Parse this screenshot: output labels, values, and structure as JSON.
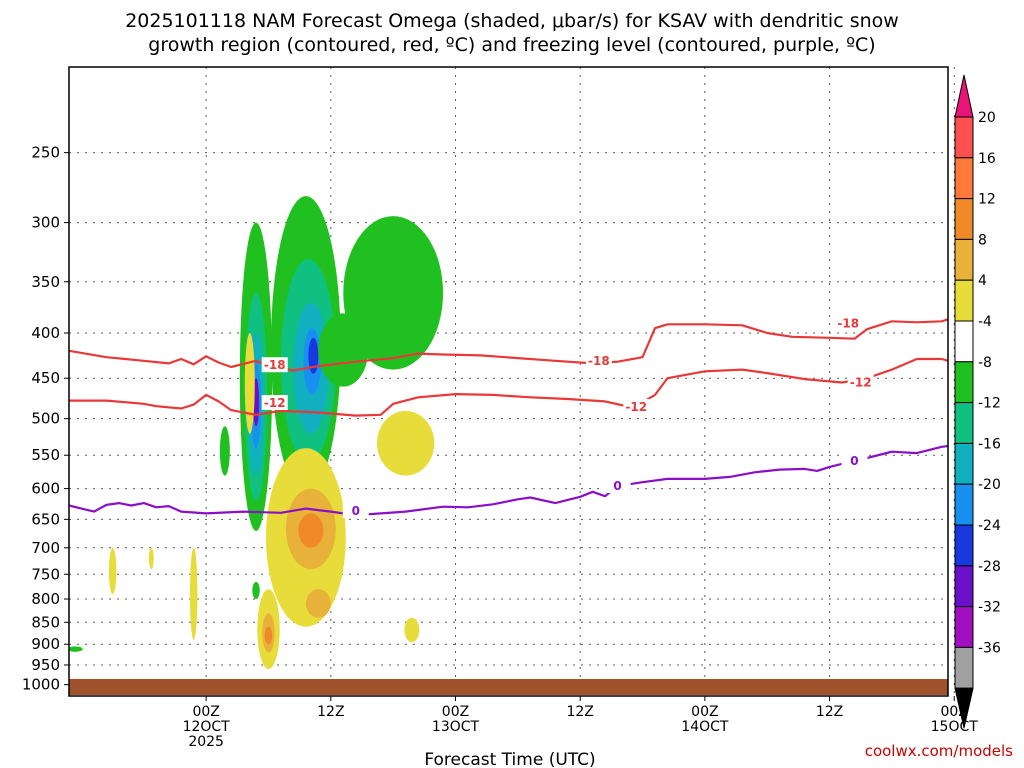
{
  "title": {
    "line1": "2025101118 NAM Forecast Omega (shaded, μbar/s) for KSAV with dendritic snow",
    "line2": "growth region (contoured, red, ºC) and freezing level (contoured, purple, ºC)"
  },
  "credit": "coolwx.com/models",
  "chart_data": {
    "type": "heatmap",
    "title": "2025101118 NAM Forecast Omega (shaded, μbar/s) for KSAV with dendritic snow growth region (contoured, red, ºC) and freezing level (contoured, purple, ºC)",
    "xlabel": "Forecast Time (UTC)",
    "ylabel": "",
    "y_axis": {
      "scale": "pressure (hPa), inverted, log-like",
      "ylim": [
        1030,
        200
      ],
      "ticks": [
        250,
        300,
        350,
        400,
        450,
        500,
        550,
        600,
        650,
        700,
        750,
        800,
        850,
        900,
        950,
        1000
      ]
    },
    "x_axis": {
      "xlim_hours_from_start": [
        -6,
        64.5
      ],
      "start_label": "2025101118",
      "ticks": [
        {
          "hour": 5,
          "line1": "00Z",
          "line2": "12OCT",
          "line3": "2025"
        },
        {
          "hour": 15,
          "line1": "12Z",
          "line2": "",
          "line3": ""
        },
        {
          "hour": 25,
          "line1": "00Z",
          "line2": "13OCT",
          "line3": ""
        },
        {
          "hour": 35,
          "line1": "12Z",
          "line2": "",
          "line3": ""
        },
        {
          "hour": 45,
          "line1": "00Z",
          "line2": "14OCT",
          "line3": ""
        },
        {
          "hour": 55,
          "line1": "12Z",
          "line2": "",
          "line3": ""
        },
        {
          "hour": 65,
          "line1": "00Z",
          "line2": "15OCT",
          "line3": ""
        }
      ]
    },
    "grid": true,
    "colorbar": {
      "labels": [
        "20",
        "16",
        "12",
        "8",
        "4",
        "-4",
        "-8",
        "-12",
        "-16",
        "-20",
        "-24",
        "-28",
        "-32",
        "-36"
      ],
      "colors": [
        "#ff5050",
        "#ff7a3a",
        "#f08a28",
        "#e8b23a",
        "#e8dc3a",
        "#ffffff",
        "#20c020",
        "#10c080",
        "#10b0c0",
        "#1890f0",
        "#1838e0",
        "#6a10c8",
        "#a010c0",
        "#a0a0a0"
      ],
      "top_arrow_color": "#e8147a",
      "bottom_arrow_color": "#000000"
    },
    "contours": [
      {
        "name": "-18",
        "color": "#e83838",
        "points": [
          [
            -6,
            419
          ],
          [
            -3,
            426
          ],
          [
            0,
            430
          ],
          [
            2,
            433
          ],
          [
            3,
            428
          ],
          [
            4,
            434
          ],
          [
            5,
            425
          ],
          [
            6,
            432
          ],
          [
            7,
            437
          ],
          [
            9,
            430
          ],
          [
            10,
            436
          ],
          [
            12,
            441
          ],
          [
            14,
            436
          ],
          [
            17,
            431
          ],
          [
            20,
            427
          ],
          [
            22,
            422
          ],
          [
            24,
            423
          ],
          [
            27,
            424
          ],
          [
            30,
            427
          ],
          [
            33,
            430
          ],
          [
            36,
            433
          ],
          [
            38,
            431
          ],
          [
            40,
            426
          ],
          [
            41,
            395
          ],
          [
            42,
            391
          ],
          [
            45,
            391
          ],
          [
            48,
            392
          ],
          [
            50,
            400
          ],
          [
            52,
            404
          ],
          [
            55,
            405
          ],
          [
            57,
            406
          ],
          [
            58,
            396
          ],
          [
            60,
            388
          ],
          [
            62,
            389
          ],
          [
            64,
            388
          ],
          [
            64.5,
            386
          ]
        ]
      },
      {
        "name": "-12",
        "color": "#e83838",
        "points": [
          [
            -6,
            477
          ],
          [
            -3,
            477
          ],
          [
            0,
            481
          ],
          [
            1,
            484
          ],
          [
            3,
            487
          ],
          [
            4,
            482
          ],
          [
            5,
            470
          ],
          [
            6,
            478
          ],
          [
            7,
            489
          ],
          [
            9,
            495
          ],
          [
            11,
            490
          ],
          [
            14,
            492
          ],
          [
            17,
            496
          ],
          [
            19,
            495
          ],
          [
            20,
            481
          ],
          [
            22,
            473
          ],
          [
            25,
            469
          ],
          [
            28,
            470
          ],
          [
            31,
            473
          ],
          [
            34,
            475
          ],
          [
            37,
            478
          ],
          [
            39,
            485
          ],
          [
            40,
            479
          ],
          [
            41,
            470
          ],
          [
            42,
            450
          ],
          [
            45,
            442
          ],
          [
            48,
            440
          ],
          [
            50,
            444
          ],
          [
            53,
            451
          ],
          [
            56,
            455
          ],
          [
            58,
            450
          ],
          [
            60,
            440
          ],
          [
            62,
            428
          ],
          [
            64,
            428
          ],
          [
            64.5,
            430
          ]
        ]
      },
      {
        "name": "0",
        "color": "#8a10c8",
        "points": [
          [
            -6,
            627
          ],
          [
            -5,
            632
          ],
          [
            -4,
            637
          ],
          [
            -3,
            626
          ],
          [
            -2,
            623
          ],
          [
            -1,
            627
          ],
          [
            0,
            623
          ],
          [
            1,
            630
          ],
          [
            2,
            628
          ],
          [
            3,
            637
          ],
          [
            5,
            640
          ],
          [
            8,
            637
          ],
          [
            11,
            639
          ],
          [
            13,
            632
          ],
          [
            15,
            637
          ],
          [
            17,
            643
          ],
          [
            19,
            640
          ],
          [
            21,
            637
          ],
          [
            24,
            629
          ],
          [
            26,
            630
          ],
          [
            28,
            625
          ],
          [
            30,
            617
          ],
          [
            31,
            614
          ],
          [
            33,
            623
          ],
          [
            35,
            613
          ],
          [
            36,
            605
          ],
          [
            37,
            612
          ],
          [
            38,
            596
          ],
          [
            40,
            590
          ],
          [
            42,
            585
          ],
          [
            45,
            585
          ],
          [
            47,
            582
          ],
          [
            49,
            575
          ],
          [
            51,
            571
          ],
          [
            53,
            570
          ],
          [
            54,
            573
          ],
          [
            55,
            567
          ],
          [
            57,
            558
          ],
          [
            58,
            554
          ],
          [
            60,
            545
          ],
          [
            62,
            547
          ],
          [
            64,
            538
          ],
          [
            64.5,
            537
          ]
        ]
      }
    ],
    "omega_blobs": [
      {
        "center_hour": 9,
        "center_hpa": 480,
        "value": -28,
        "note": "core"
      },
      {
        "center_hour": 9,
        "center_hpa": 450,
        "value": -8
      },
      {
        "center_hour": 13.5,
        "center_hpa": 420,
        "value": -24,
        "note": "core"
      },
      {
        "center_hour": 13,
        "center_hpa": 360,
        "value": -8
      },
      {
        "center_hour": 20,
        "center_hpa": 360,
        "value": -8
      },
      {
        "center_hour": 13,
        "center_hpa": 680,
        "value": 8
      },
      {
        "center_hour": 10,
        "center_hpa": 860,
        "value": 12
      },
      {
        "center_hour": 21,
        "center_hpa": 530,
        "value": 4
      }
    ]
  }
}
